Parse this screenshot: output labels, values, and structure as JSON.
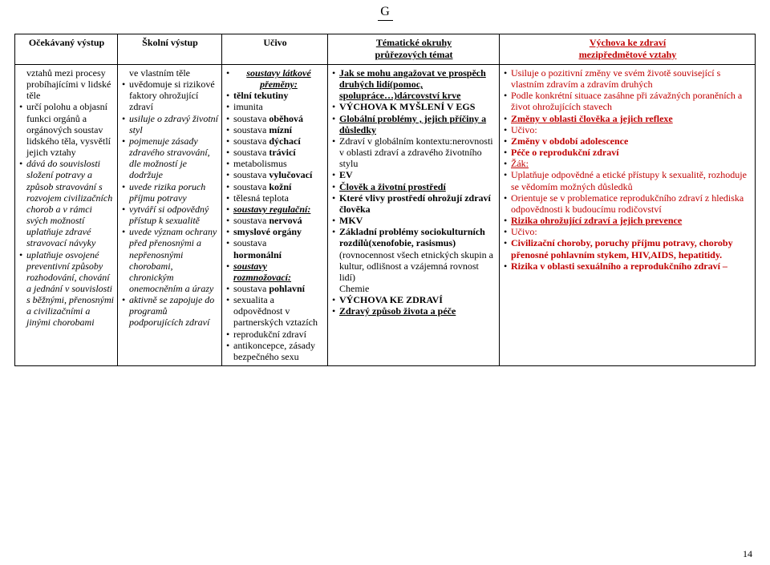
{
  "logo": {
    "top": "G",
    "bottom": "―"
  },
  "headers": {
    "c1": "Očekávaný výstup",
    "c2": "Školní výstup",
    "c3": "Učivo",
    "c4a": "Tématické okruhy",
    "c4b": "průřezových témat",
    "c5a": "Výchova ke zdraví",
    "c5b": "mezipředmětové vztahy"
  },
  "col1": [
    {
      "t": "vztahů mezi procesy probíhajícími v lidské těle",
      "cls": "nomark"
    },
    {
      "t": "určí polohu a objasní funkci orgánů a orgánových soustav lidského těla, vysvětlí jejich vztahy"
    },
    {
      "pre": "",
      "i": "dává do souvislosti složení potravy a způsob stravování s rozvojem civilizačních chorob a v rámci svých možností uplatňuje zdravé stravovací návyky"
    },
    {
      "i": "uplatňuje osvojené preventivní způsoby rozhodování, chování a jednání v souvislosti s běžnými, přenosnými a civilizačními a jinými chorobami"
    }
  ],
  "col2": [
    {
      "t": "ve vlastním těle",
      "cls": "nomark"
    },
    {
      "t": "uvědomuje si rizikové faktory ohrožující zdraví"
    },
    {
      "i": "usiluje o zdravý životní styl"
    },
    {
      "i": "pojmenuje zásady zdravého stravování, dle možností je dodržuje"
    },
    {
      "i": "uvede rizika poruch příjmu potravy"
    },
    {
      "i": " vytváří si odpovědný přístup k sexualitě"
    },
    {
      "i": "uvede význam ochrany před přenosnými a nepřenosnými chorobami, chronickým onemocněním a úrazy"
    },
    {
      "i": "aktivně se zapojuje do programů podporujících zdraví"
    }
  ],
  "col3": [
    {
      "biu": "soustavy látkové přeměny:",
      "center": true
    },
    {
      "pre": "",
      "b": "tělní tekutiny"
    },
    {
      "t": "imunita"
    },
    {
      "pre": "soustava ",
      "b": "oběhová"
    },
    {
      "pre": "soustava ",
      "b": "mízní"
    },
    {
      "pre": "soustava ",
      "b": "dýchací"
    },
    {
      "pre": "soustava ",
      "b": "trávicí"
    },
    {
      "t": "metabolismus"
    },
    {
      "pre": " soustava ",
      "b": "vylučovací"
    },
    {
      "pre": "soustava ",
      "b": "kožní"
    },
    {
      "t": "tělesná teplota"
    },
    {
      "biu": "soustavy regulační:"
    },
    {
      "pre": "soustava ",
      "b": "nervová"
    },
    {
      "b": "smyslové orgány"
    },
    {
      "pre": "soustava ",
      "b2": "hormonální"
    },
    {
      "biu": "soustavy",
      "biu2": "rozmnožovací:"
    },
    {
      "pre": "soustava ",
      "b": "pohlavní"
    },
    {
      "t": "sexualita a odpovědnost v partnerských vztazích"
    },
    {
      "t": "reprodukční zdraví"
    },
    {
      "t": "antikoncepce, zásady bezpečného sexu"
    }
  ],
  "col4": [
    {
      "bu": "Jak se mohu angažovat ve prospěch druhých lidí(pomoc, spolupráce…)dárcovství krve"
    },
    {
      "b": "VÝCHOVA K MYŠLENÍ V EGS"
    },
    {
      "bpre": " ",
      "bu": "Globální problémy , jejich příčiny a důsledky"
    },
    {
      "t": "Zdraví v globálním kontextu:nerovnosti v oblasti zdraví a zdravého životního stylu"
    },
    {
      "b": "EV"
    },
    {
      "bu": "Člověk a životní prostředí"
    },
    {
      "b": "Které vlivy prostředí ohrožují zdraví člověka"
    },
    {
      "b": "MKV"
    },
    {
      "b": "Základní problémy sociokulturních rozdílů(xenofobie, rasismus)",
      "post": " (rovnocennost všech etnických skupin a kultur, odlišnost a vzájemná rovnost lidí)"
    },
    {
      "t": "Chemie",
      "cls": "nomark"
    },
    {
      "b": "VÝCHOVA KE ZDRAVÍ"
    },
    {
      "bu": "Zdravý způsob života a péče"
    }
  ],
  "col5": [
    {
      "rt": "Usiluje o pozitivní změny ve svém životě související s vlastním zdravím a zdravím druhých"
    },
    {
      "rt": "Podle konkrétní situace zasáhne při závažných poraněních a život ohrožujících stavech"
    },
    {
      "rbu": "Změny v oblasti člověka a jejich reflexe"
    },
    {
      "rt": "Učivo:"
    },
    {
      "rb": "Změny v období adolescence"
    },
    {
      "rb": "Péče o reprodukční zdraví"
    },
    {
      "rux": "Žák:"
    },
    {
      "rt": "Uplatňuje odpovědné a etické přístupy k sexualitě, rozhoduje se vědomím možných důsledků"
    },
    {
      "rt": "Orientuje se v problematice reprodukčního zdraví z hlediska odpovědnosti k budoucímu rodičovství"
    },
    {
      "rbu": "Rizika ohrožující zdraví a jejich prevence"
    },
    {
      "rt": "Učivo:"
    },
    {
      "rb": "Civilizační choroby, poruchy příjmu potravy, choroby přenosné pohlavním stykem, HIV,AIDS, hepatitidy."
    },
    {
      "rb": "Rizika v oblasti sexuálního a reprodukčního zdraví –"
    }
  ],
  "pagenum": "14"
}
